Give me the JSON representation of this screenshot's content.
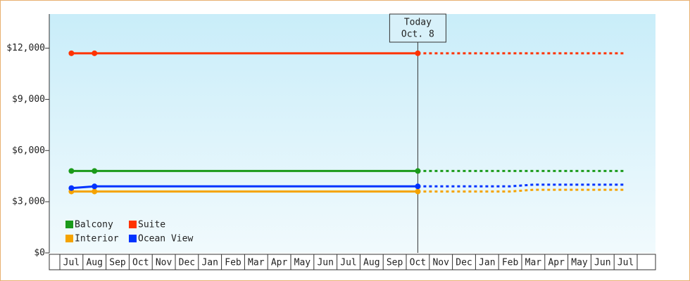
{
  "chart_data": {
    "type": "line",
    "categories": [
      "Jul",
      "Aug",
      "Sep",
      "Oct",
      "Nov",
      "Dec",
      "Jan",
      "Feb",
      "Mar",
      "Apr",
      "May",
      "Jun",
      "Jul",
      "Aug",
      "Sep",
      "Oct",
      "Nov",
      "Dec",
      "Jan",
      "Feb",
      "Mar",
      "Apr",
      "May",
      "Jun",
      "Jul"
    ],
    "ylim": [
      0,
      14000
    ],
    "yticks": [
      {
        "value": 0,
        "label": "$0"
      },
      {
        "value": 3000,
        "label": "$3,000"
      },
      {
        "value": 6000,
        "label": "$6,000"
      },
      {
        "value": 9000,
        "label": "$9,000"
      },
      {
        "value": 12000,
        "label": "$12,000"
      }
    ],
    "annotation": {
      "title": "Today",
      "date": "Oct. 8",
      "category": 15
    },
    "series": [
      {
        "name": "Balcony",
        "color": "#1a9a1a",
        "values": [
          4800,
          4800,
          4800,
          4800,
          4800,
          4800,
          4800,
          4800,
          4800,
          4800,
          4800,
          4800,
          4800,
          4800,
          4800,
          4800,
          null,
          null,
          null,
          null,
          null,
          null,
          null,
          null,
          null
        ],
        "forecast": [
          null,
          null,
          null,
          null,
          null,
          null,
          null,
          null,
          null,
          null,
          null,
          null,
          null,
          null,
          null,
          4800,
          4800,
          4800,
          4800,
          4800,
          4800,
          4800,
          4800,
          4800,
          4800
        ]
      },
      {
        "name": "Suite",
        "color": "#ff3300",
        "values": [
          11700,
          11700,
          11700,
          11700,
          11700,
          11700,
          11700,
          11700,
          11700,
          11700,
          11700,
          11700,
          11700,
          11700,
          11700,
          11700,
          null,
          null,
          null,
          null,
          null,
          null,
          null,
          null,
          null
        ],
        "forecast": [
          null,
          null,
          null,
          null,
          null,
          null,
          null,
          null,
          null,
          null,
          null,
          null,
          null,
          null,
          null,
          11700,
          11700,
          11700,
          11700,
          11700,
          11700,
          11700,
          11700,
          11700,
          11700
        ]
      },
      {
        "name": "Interior",
        "color": "#f5a300",
        "values": [
          3600,
          3600,
          3600,
          3600,
          3600,
          3600,
          3600,
          3600,
          3600,
          3600,
          3600,
          3600,
          3600,
          3600,
          3600,
          3600,
          null,
          null,
          null,
          null,
          null,
          null,
          null,
          null,
          null
        ],
        "forecast": [
          null,
          null,
          null,
          null,
          null,
          null,
          null,
          null,
          null,
          null,
          null,
          null,
          null,
          null,
          null,
          3600,
          3600,
          3600,
          3600,
          3600,
          3700,
          3700,
          3700,
          3700,
          3700
        ]
      },
      {
        "name": "Ocean View",
        "color": "#0033ff",
        "values": [
          3800,
          3900,
          3900,
          3900,
          3900,
          3900,
          3900,
          3900,
          3900,
          3900,
          3900,
          3900,
          3900,
          3900,
          3900,
          3900,
          null,
          null,
          null,
          null,
          null,
          null,
          null,
          null,
          null
        ],
        "forecast": [
          null,
          null,
          null,
          null,
          null,
          null,
          null,
          null,
          null,
          null,
          null,
          null,
          null,
          null,
          null,
          3900,
          3900,
          3900,
          3900,
          3900,
          4000,
          4000,
          4000,
          4000,
          4000
        ]
      }
    ]
  }
}
